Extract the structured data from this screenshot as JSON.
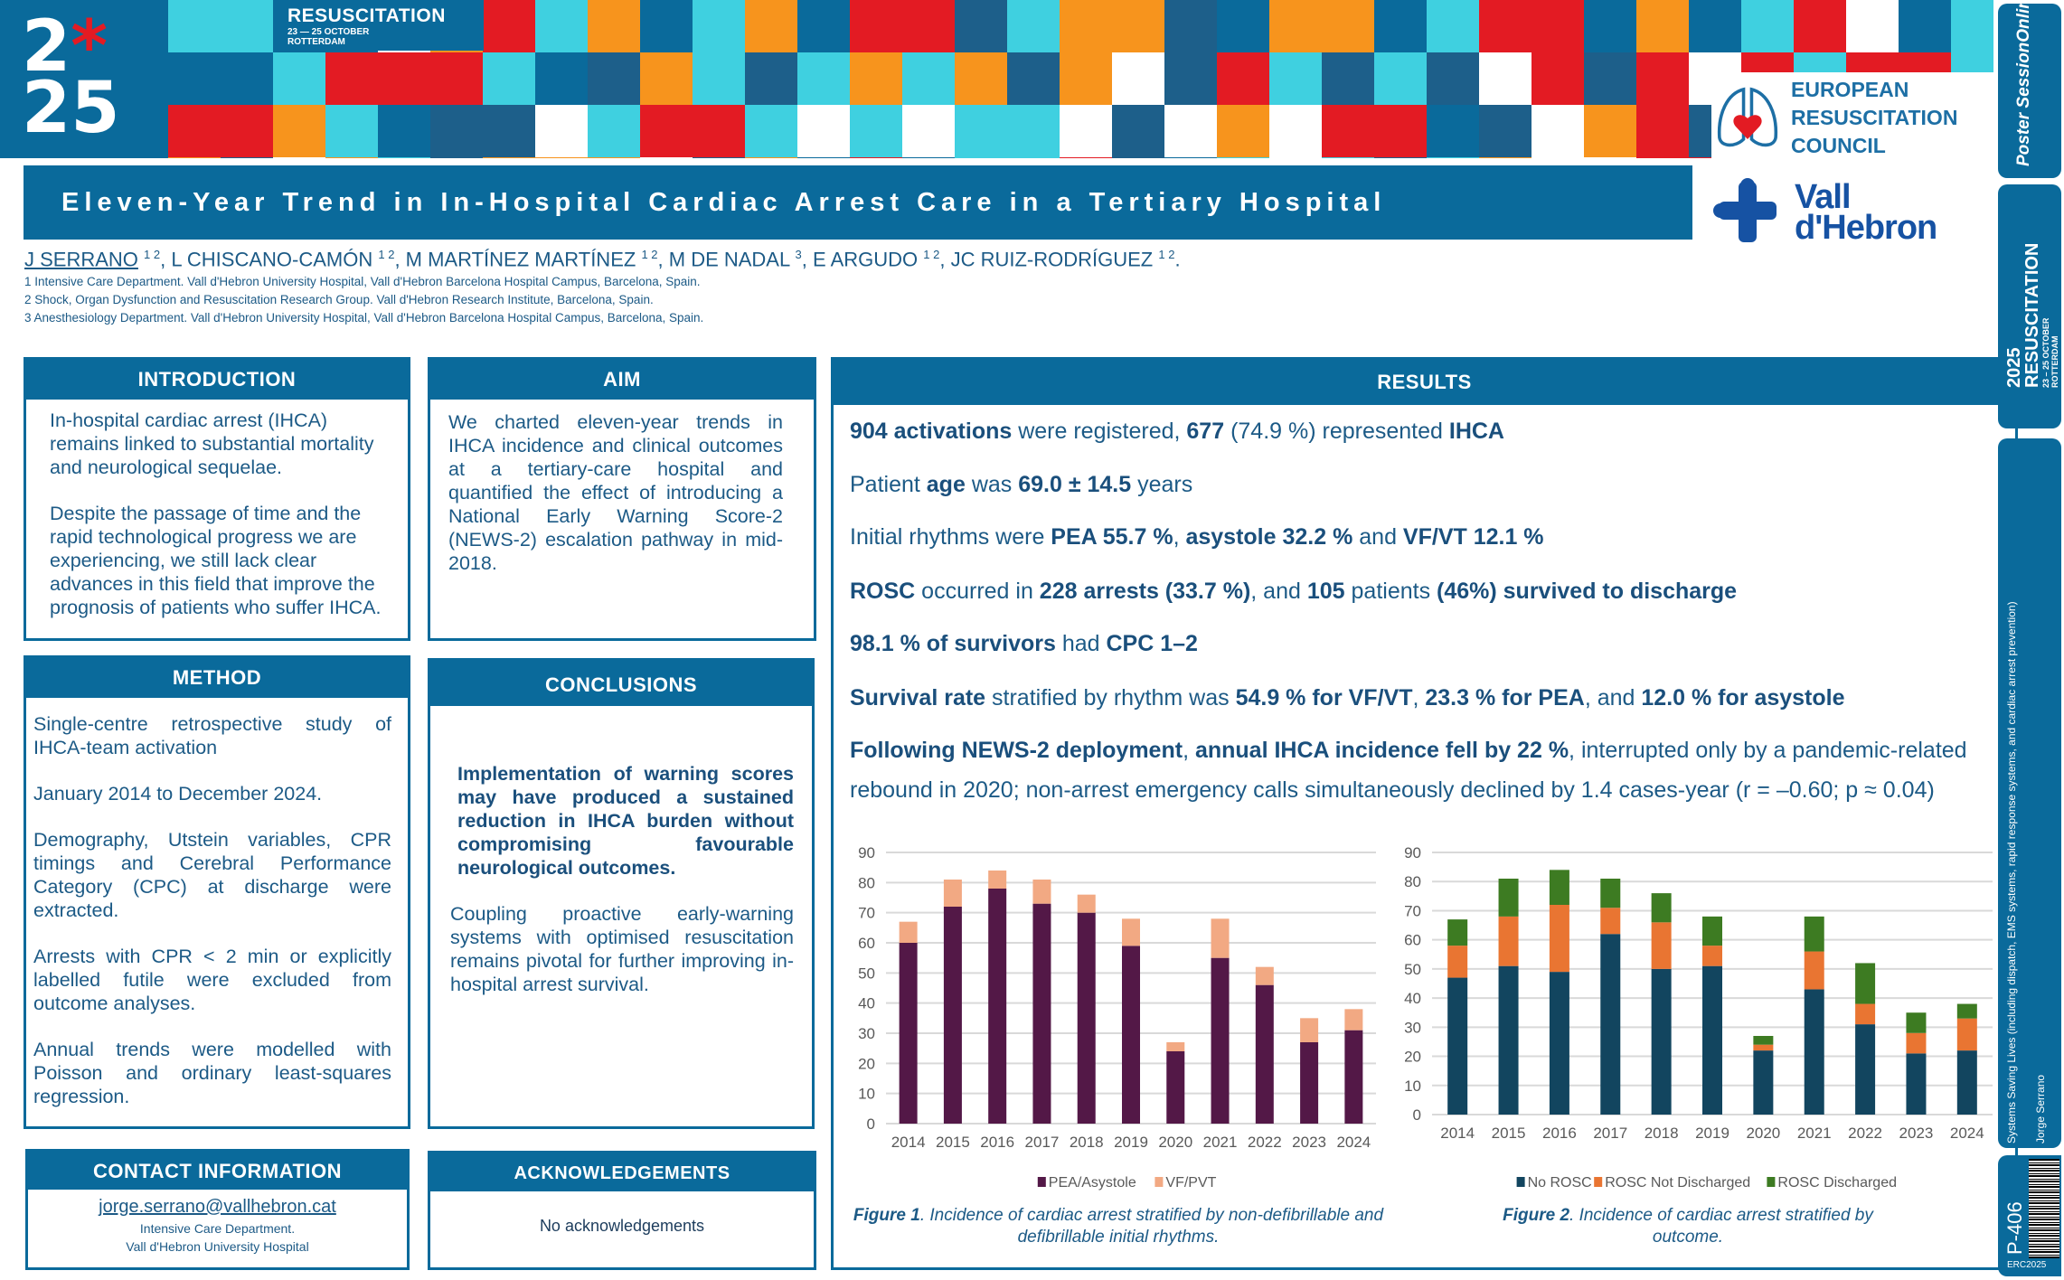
{
  "colors": {
    "primary": "#0a6a9b",
    "title_text": "#ffffff",
    "body_text": "#1c5a86",
    "banner_palette": [
      "#e31b23",
      "#f7941d",
      "#3fd0e0",
      "#0a6a9b",
      "#ffffff",
      "#1d5f8a"
    ]
  },
  "banner": {
    "year_top": "2",
    "year_mark": "*",
    "year_top2": "5",
    "year_bottom": "25",
    "event": "RESUSCITATION",
    "dates": "23 — 25 OCTOBER",
    "city": "ROTTERDAM"
  },
  "erc_logo": {
    "line1": "EUROPEAN",
    "line2": "RESUSCITATION",
    "line3": "COUNCIL"
  },
  "hospital_logo": {
    "line1": "Vall",
    "line2": "d'Hebron"
  },
  "title": "Eleven-Year Trend in In-Hospital Cardiac Arrest Care in a Tertiary Hospital",
  "authors": [
    {
      "name": "J SERRANO",
      "sup": "1 2"
    },
    {
      "name": "L CHISCANO-CAMÓN",
      "sup": "1 2"
    },
    {
      "name": "M MARTÍNEZ MARTÍNEZ",
      "sup": "1 2"
    },
    {
      "name": "M DE NADAL",
      "sup": "3"
    },
    {
      "name": "E ARGUDO",
      "sup": "1 2"
    },
    {
      "name": "JC RUIZ-RODRÍGUEZ",
      "sup": "1 2"
    }
  ],
  "affiliations": [
    "1 Intensive Care Department. Vall d'Hebron University Hospital, Vall d'Hebron Barcelona Hospital Campus, Barcelona, Spain.",
    "2 Shock, Organ Dysfunction and Resuscitation Research Group. Vall d'Hebron Research Institute, Barcelona, Spain.",
    "3 Anesthesiology Department. Vall d'Hebron University Hospital, Vall d'Hebron Barcelona Hospital Campus, Barcelona, Spain."
  ],
  "introduction": {
    "heading": "INTRODUCTION",
    "paragraphs": [
      "In-hospital cardiac arrest (IHCA) remains linked to substantial mortality and neurological sequelae.",
      "Despite the passage of time and the rapid technological progress we are experiencing, we still lack clear advances in this field that improve the prognosis of patients who suffer IHCA."
    ]
  },
  "aim": {
    "heading": "AIM",
    "paragraphs": [
      "We charted eleven-year trends in IHCA incidence and clinical outcomes at a tertiary-care hospital and quantified the effect of introducing a National Early Warning Score-2 (NEWS-2) escalation pathway in mid-2018."
    ]
  },
  "method": {
    "heading": "METHOD",
    "paragraphs": [
      "Single-centre retrospective study of IHCA-team activation",
      "January 2014 to December 2024.",
      "Demography, Utstein variables, CPR timings and Cerebral Performance Category (CPC) at discharge were extracted.",
      "Arrests with CPR < 2 min or explicitly labelled futile were excluded from outcome analyses.",
      "Annual trends were modelled with Poisson and ordinary least-squares regression."
    ]
  },
  "conclusions": {
    "heading": "CONCLUSIONS",
    "paragraphs": [
      "Implementation of warning scores may have produced a sustained reduction in IHCA burden without compromising favourable neurological outcomes.",
      "Coupling proactive early-warning systems with optimised resuscitation remains pivotal for further improving in-hospital arrest survival."
    ]
  },
  "contact": {
    "heading": "CONTACT INFORMATION",
    "email": "jorge.serrano@vallhebron.cat",
    "line1": "Intensive Care Department.",
    "line2": "Vall d'Hebron University Hospital"
  },
  "acknowledgements": {
    "heading": "ACKNOWLEDGEMENTS",
    "text": "No acknowledgements"
  },
  "results": {
    "heading": "RESULTS",
    "lines": [
      [
        {
          "t": "904 activations",
          "b": true
        },
        {
          "t": " were registered, "
        },
        {
          "t": "677",
          "b": true
        },
        {
          "t": " (74.9 %) represented "
        },
        {
          "t": "IHCA",
          "b": true
        }
      ],
      [
        {
          "t": "Patient "
        },
        {
          "t": "age",
          "b": true
        },
        {
          "t": " was "
        },
        {
          "t": "69.0 ± 14.5",
          "b": true
        },
        {
          "t": " years"
        }
      ],
      [
        {
          "t": "Initial rhythms were "
        },
        {
          "t": "PEA 55.7 %",
          "b": true
        },
        {
          "t": ", "
        },
        {
          "t": "asystole 32.2 %",
          "b": true
        },
        {
          "t": " and "
        },
        {
          "t": "VF/VT 12.1 %",
          "b": true
        }
      ],
      [
        {
          "t": "ROSC",
          "b": true
        },
        {
          "t": " occurred in "
        },
        {
          "t": "228 arrests (33.7 %)",
          "b": true
        },
        {
          "t": ", and "
        },
        {
          "t": "105",
          "b": true
        },
        {
          "t": " patients "
        },
        {
          "t": "(46%) survived to discharge",
          "b": true
        }
      ],
      [
        {
          "t": "98.1 % of survivors",
          "b": true
        },
        {
          "t": " had "
        },
        {
          "t": "CPC 1–2",
          "b": true
        }
      ],
      [
        {
          "t": "Survival rate",
          "b": true
        },
        {
          "t": " stratified by rhythm was "
        },
        {
          "t": "54.9 % for VF/VT",
          "b": true
        },
        {
          "t": ", "
        },
        {
          "t": "23.3 % for PEA",
          "b": true
        },
        {
          "t": ", and "
        },
        {
          "t": "12.0 % for asystole",
          "b": true
        }
      ],
      [
        {
          "t": "Following NEWS-2 deployment",
          "b": true
        },
        {
          "t": ", "
        },
        {
          "t": "annual IHCA incidence fell by 22 %",
          "b": true
        },
        {
          "t": ", interrupted only by a pandemic-related"
        }
      ],
      [
        {
          "t": "rebound in 2020; non-arrest emergency calls simultaneously declined by 1.4 cases-year (r = –0.60; p ≈ 0.04)"
        }
      ]
    ],
    "figure1_caption": {
      "label": "Figure 1",
      "text": ". Incidence of cardiac arrest stratified by non-defibrillable and defibrillable initial rhythms."
    },
    "figure2_caption": {
      "label": "Figure 2",
      "text": ". Incidence of cardiac arrest stratified by outcome."
    }
  },
  "chart_data": [
    {
      "type": "bar",
      "stacked": true,
      "categories": [
        "2014",
        "2015",
        "2016",
        "2017",
        "2018",
        "2019",
        "2020",
        "2021",
        "2022",
        "2023",
        "2024"
      ],
      "series": [
        {
          "name": "PEA/Asystole",
          "color": "#531847",
          "values": [
            60,
            72,
            78,
            73,
            70,
            59,
            24,
            55,
            46,
            27,
            31
          ]
        },
        {
          "name": "VF/PVT",
          "color": "#f2a983",
          "values": [
            7,
            9,
            6,
            8,
            6,
            9,
            3,
            13,
            6,
            8,
            7
          ]
        }
      ],
      "ylim": [
        0,
        90
      ],
      "yticks": [
        0,
        10,
        20,
        30,
        40,
        50,
        60,
        70,
        80,
        90
      ],
      "grid": true,
      "legend": "bottom"
    },
    {
      "type": "bar",
      "stacked": true,
      "categories": [
        "2014",
        "2015",
        "2016",
        "2017",
        "2018",
        "2019",
        "2020",
        "2021",
        "2022",
        "2023",
        "2024"
      ],
      "series": [
        {
          "name": "No ROSC",
          "color": "#12455f",
          "values": [
            47,
            51,
            49,
            62,
            50,
            51,
            22,
            43,
            31,
            21,
            22
          ]
        },
        {
          "name": "ROSC Not Discharged",
          "color": "#e97532",
          "values": [
            11,
            17,
            23,
            9,
            16,
            7,
            2,
            13,
            7,
            7,
            11
          ]
        },
        {
          "name": "ROSC Discharged",
          "color": "#3d7b22",
          "values": [
            9,
            13,
            12,
            10,
            10,
            10,
            3,
            12,
            14,
            7,
            5
          ]
        }
      ],
      "ylim": [
        0,
        90
      ],
      "yticks": [
        0,
        10,
        20,
        30,
        40,
        50,
        60,
        70,
        80,
        90
      ],
      "grid": true,
      "legend": "bottom"
    }
  ],
  "sidebar": {
    "poster_session": "Poster SessionOnline",
    "event_year": "2025",
    "event": "RESUSCITATION",
    "dates": "23 – 25 OCTOBER",
    "city": "ROTTERDAM",
    "topic": "Systems Saving Lives (including dispatch, EMS systems, rapid response systems, and cardiac arrest prevention)",
    "presenter": "Jorge Serrano",
    "poster_id": "P-406",
    "footer": "ERC2025"
  }
}
